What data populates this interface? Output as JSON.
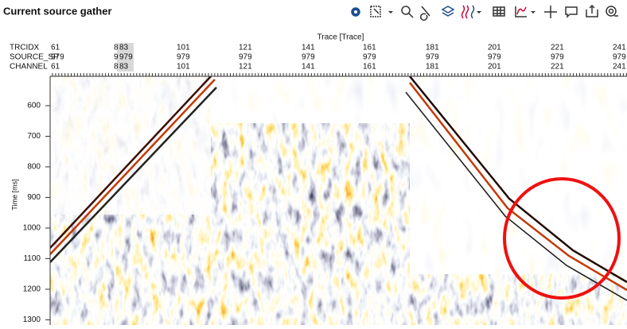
{
  "window": {
    "title": "Current source gather"
  },
  "plot": {
    "x_axis_title": "Trace [Trace]",
    "header_rows": [
      {
        "name": "TRCIDX",
        "values": [
          61,
          8,
          83,
          101,
          121,
          141,
          161,
          181,
          201,
          221,
          241
        ]
      },
      {
        "name": "SOURCE_SP",
        "values": [
          979,
          9,
          979,
          979,
          979,
          979,
          979,
          979,
          979,
          979,
          979
        ]
      },
      {
        "name": "CHANNEL",
        "values": [
          61,
          8,
          83,
          101,
          121,
          141,
          161,
          181,
          201,
          221,
          241
        ]
      }
    ],
    "y_axis_title": "Time [ms]",
    "ylim": [
      504,
      1317
    ],
    "yticks": [
      600,
      700,
      800,
      900,
      1000,
      1100,
      1200,
      1300
    ]
  }
}
